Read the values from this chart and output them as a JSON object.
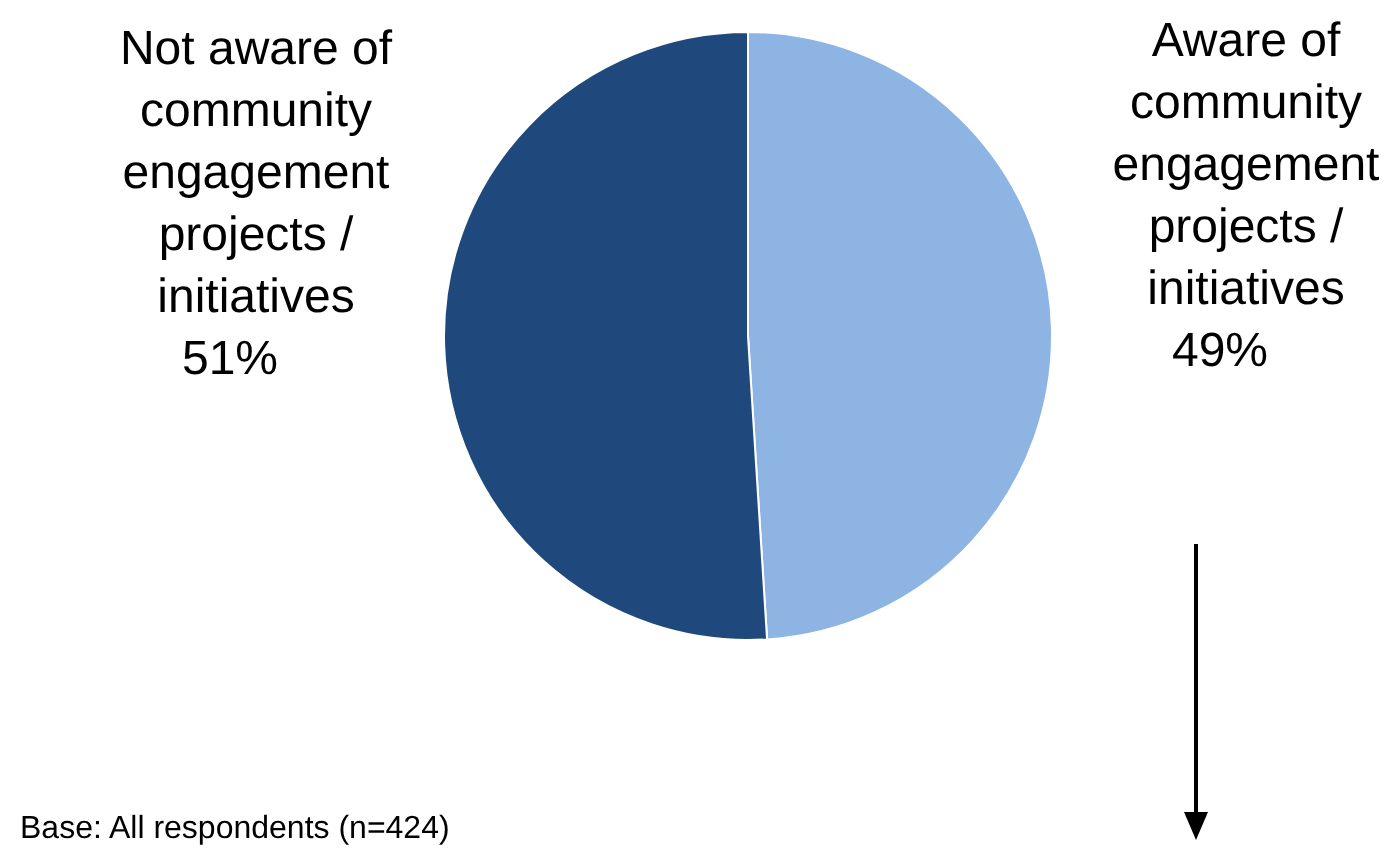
{
  "chart_data": {
    "type": "pie",
    "categories": [
      "Aware of community engagement projects / initiatives",
      "Not aware of community engagement projects / initiatives"
    ],
    "values": [
      49,
      51
    ],
    "value_labels": [
      "49%",
      "51%"
    ],
    "colors": [
      "#8eb4e3",
      "#1f497d"
    ],
    "annotations": [
      "Base: All respondents (n=424)"
    ],
    "legend": false
  }
}
